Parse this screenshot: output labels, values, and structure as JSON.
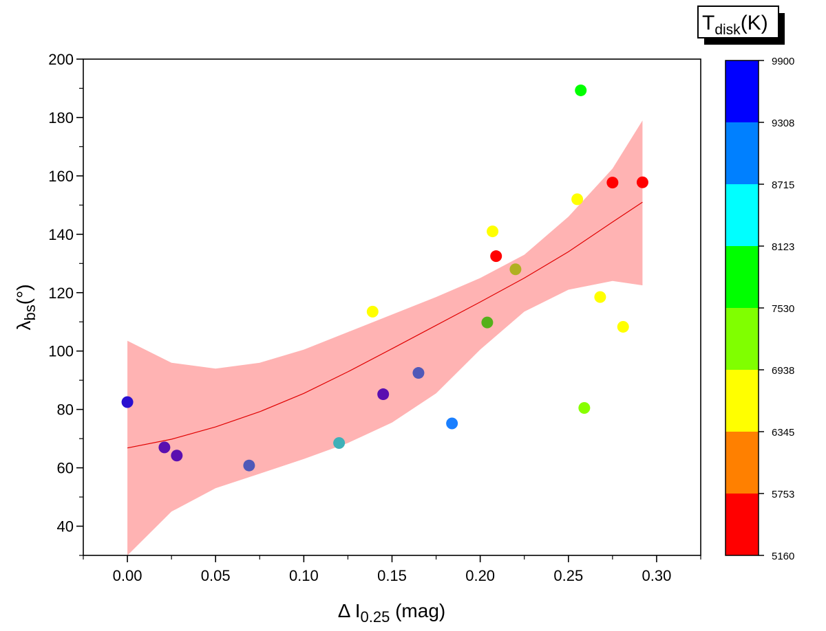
{
  "chart_data": {
    "type": "scatter",
    "xlabel": {
      "prefix": "Δ I",
      "sub": "0.25",
      "suffix": " (mag)"
    },
    "ylabel": {
      "prefix": "λ",
      "sub": "bs",
      "suffix": "(°)"
    },
    "xlim": [
      -0.025,
      0.325
    ],
    "ylim": [
      30,
      200
    ],
    "xticks": [
      "0.00",
      "0.05",
      "0.10",
      "0.15",
      "0.20",
      "0.25",
      "0.30"
    ],
    "xtick_values": [
      0.0,
      0.05,
      0.1,
      0.15,
      0.2,
      0.25,
      0.3
    ],
    "yticks": [
      "40",
      "60",
      "80",
      "100",
      "120",
      "140",
      "160",
      "180",
      "200"
    ],
    "ytick_values": [
      40,
      60,
      80,
      100,
      120,
      140,
      160,
      180,
      200
    ],
    "points": [
      {
        "x": 0.0,
        "y": 82.5,
        "color": "#2a0fd0"
      },
      {
        "x": 0.021,
        "y": 67.0,
        "color": "#5a0fb0"
      },
      {
        "x": 0.028,
        "y": 64.2,
        "color": "#5a0fb0"
      },
      {
        "x": 0.069,
        "y": 60.8,
        "color": "#5059b8"
      },
      {
        "x": 0.12,
        "y": 68.5,
        "color": "#3fb0b8"
      },
      {
        "x": 0.139,
        "y": 113.5,
        "color": "#ffff00"
      },
      {
        "x": 0.145,
        "y": 85.2,
        "color": "#5a0fb0"
      },
      {
        "x": 0.165,
        "y": 92.5,
        "color": "#5059b8"
      },
      {
        "x": 0.184,
        "y": 75.2,
        "color": "#1a7fff"
      },
      {
        "x": 0.204,
        "y": 109.8,
        "color": "#55b01a"
      },
      {
        "x": 0.207,
        "y": 141.0,
        "color": "#ffff00"
      },
      {
        "x": 0.209,
        "y": 132.5,
        "color": "#ff0000"
      },
      {
        "x": 0.22,
        "y": 128.0,
        "color": "#b0b020"
      },
      {
        "x": 0.255,
        "y": 152.0,
        "color": "#ffff00"
      },
      {
        "x": 0.257,
        "y": 189.3,
        "color": "#00ff00"
      },
      {
        "x": 0.259,
        "y": 80.5,
        "color": "#88ff00"
      },
      {
        "x": 0.268,
        "y": 118.5,
        "color": "#ffff00"
      },
      {
        "x": 0.275,
        "y": 157.7,
        "color": "#ff0000"
      },
      {
        "x": 0.281,
        "y": 108.3,
        "color": "#ffff00"
      },
      {
        "x": 0.292,
        "y": 157.8,
        "color": "#ff0000"
      }
    ],
    "fit_line": {
      "color": "#e00000",
      "x": [
        0.0,
        0.025,
        0.05,
        0.075,
        0.1,
        0.125,
        0.15,
        0.175,
        0.2,
        0.225,
        0.25,
        0.275,
        0.292
      ],
      "y": [
        66.8,
        69.8,
        74.0,
        79.2,
        85.5,
        92.9,
        100.8,
        108.8,
        116.8,
        125.0,
        134.0,
        144.2,
        151.0
      ]
    },
    "confidence_band": {
      "color": "#ffb3b3",
      "x": [
        0.0,
        0.025,
        0.05,
        0.075,
        0.1,
        0.125,
        0.15,
        0.175,
        0.2,
        0.225,
        0.25,
        0.275,
        0.292
      ],
      "upper": [
        103.5,
        96.0,
        94.0,
        96.0,
        100.5,
        106.5,
        112.5,
        118.5,
        125.0,
        133.0,
        146.0,
        162.5,
        179.0
      ],
      "lower": [
        30.0,
        45.0,
        53.0,
        58.0,
        63.0,
        68.5,
        75.5,
        85.5,
        100.5,
        113.5,
        121.0,
        124.0,
        122.5
      ]
    },
    "colorbar": {
      "title": {
        "main": "T",
        "sub": "disk",
        "suffix": "(K)"
      },
      "labels": [
        "9900",
        "9308",
        "8715",
        "8123",
        "7530",
        "6938",
        "6345",
        "5753",
        "5160"
      ],
      "colors_top_to_bottom": [
        "#0000ff",
        "#0080ff",
        "#00ffff",
        "#00ff00",
        "#80ff00",
        "#ffff00",
        "#ff8000",
        "#ff0000"
      ]
    }
  }
}
